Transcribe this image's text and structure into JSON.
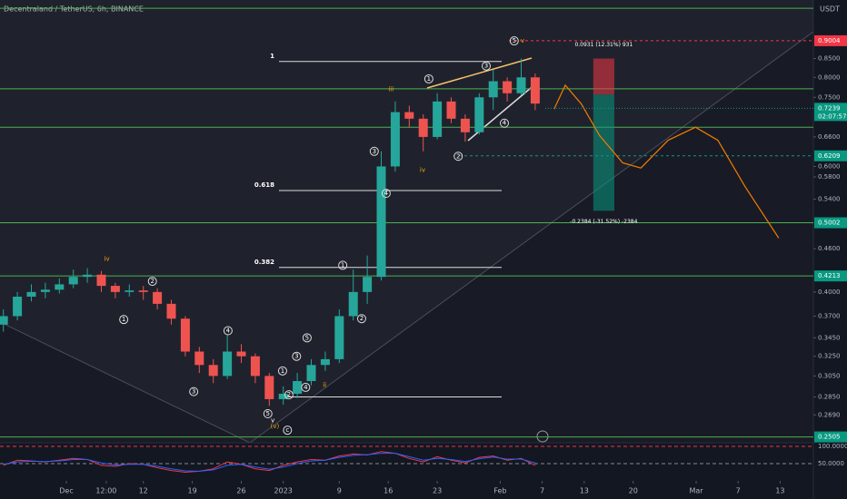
{
  "chart_data": {
    "type": "candlestick",
    "title": "Decentraland / TetherUS, 6h, BINANCE",
    "currency": "USDT",
    "log_scale": true,
    "xlim": [
      -9.48,
      106.75
    ],
    "ylim": [
      0.248,
      1.027
    ],
    "xticks": [
      {
        "value": 0,
        "label": "Dec"
      },
      {
        "value": 5.7,
        "label": "12:00"
      },
      {
        "value": 11,
        "label": "12"
      },
      {
        "value": 18,
        "label": "19"
      },
      {
        "value": 25,
        "label": "26"
      },
      {
        "value": 31,
        "label": "2023"
      },
      {
        "value": 39,
        "label": "9"
      },
      {
        "value": 46,
        "label": "16"
      },
      {
        "value": 53,
        "label": "23"
      },
      {
        "value": 62,
        "label": "Feb"
      },
      {
        "value": 68,
        "label": "7"
      },
      {
        "value": 74,
        "label": "13"
      },
      {
        "value": 81,
        "label": "20"
      },
      {
        "value": 90,
        "label": "Mar"
      },
      {
        "value": 96,
        "label": "7"
      },
      {
        "value": 102,
        "label": "13"
      }
    ],
    "yticks": [
      {
        "value": 0.85,
        "label": "0.8500"
      },
      {
        "value": 0.8,
        "label": "0.8000"
      },
      {
        "value": 0.75,
        "label": "0.7500"
      },
      {
        "value": 0.66,
        "label": "0.6600"
      },
      {
        "value": 0.6,
        "label": "0.6000"
      },
      {
        "value": 0.58,
        "label": "0.5800"
      },
      {
        "value": 0.54,
        "label": "0.5400"
      },
      {
        "value": 0.46,
        "label": "0.4600"
      },
      {
        "value": 0.4,
        "label": "0.4000"
      },
      {
        "value": 0.37,
        "label": "0.3700"
      },
      {
        "value": 0.345,
        "label": "0.3450"
      },
      {
        "value": 0.325,
        "label": "0.3250"
      },
      {
        "value": 0.305,
        "label": "0.3050"
      },
      {
        "value": 0.285,
        "label": "0.2850"
      },
      {
        "value": 0.269,
        "label": "0.2690"
      }
    ],
    "candles": {
      "up_color": "#26a69a",
      "down_color": "#ef5350",
      "x": [
        -9,
        -7,
        -5,
        -3,
        -1,
        1,
        3,
        5,
        7,
        9,
        11,
        13,
        15,
        17,
        19,
        21,
        23,
        25,
        27,
        29,
        31,
        33,
        35,
        37,
        39,
        41,
        43,
        45,
        47,
        49,
        51,
        53,
        55,
        57,
        59,
        61,
        63,
        65,
        67
      ],
      "open": [
        0.36,
        0.37,
        0.394,
        0.4,
        0.403,
        0.41,
        0.42,
        0.423,
        0.408,
        0.4,
        0.402,
        0.4,
        0.385,
        0.367,
        0.33,
        0.316,
        0.305,
        0.33,
        0.325,
        0.305,
        0.283,
        0.288,
        0.3,
        0.316,
        0.322,
        0.37,
        0.4,
        0.42,
        0.6,
        0.715,
        0.7,
        0.66,
        0.74,
        0.7,
        0.67,
        0.75,
        0.79,
        0.76,
        0.8
      ],
      "high": [
        0.378,
        0.4,
        0.41,
        0.412,
        0.418,
        0.43,
        0.432,
        0.428,
        0.412,
        0.41,
        0.408,
        0.405,
        0.39,
        0.37,
        0.335,
        0.322,
        0.348,
        0.338,
        0.328,
        0.308,
        0.295,
        0.308,
        0.322,
        0.33,
        0.378,
        0.43,
        0.45,
        0.63,
        0.74,
        0.73,
        0.71,
        0.76,
        0.75,
        0.71,
        0.76,
        0.82,
        0.8,
        0.85,
        0.81
      ],
      "low": [
        0.352,
        0.365,
        0.388,
        0.392,
        0.398,
        0.405,
        0.412,
        0.4,
        0.392,
        0.394,
        0.39,
        0.378,
        0.36,
        0.325,
        0.308,
        0.298,
        0.302,
        0.318,
        0.298,
        0.277,
        0.278,
        0.284,
        0.296,
        0.31,
        0.318,
        0.365,
        0.385,
        0.415,
        0.59,
        0.68,
        0.63,
        0.655,
        0.69,
        0.65,
        0.665,
        0.72,
        0.74,
        0.755,
        0.72
      ],
      "close": [
        0.37,
        0.394,
        0.4,
        0.403,
        0.41,
        0.42,
        0.423,
        0.408,
        0.4,
        0.402,
        0.4,
        0.385,
        0.367,
        0.33,
        0.316,
        0.305,
        0.33,
        0.325,
        0.305,
        0.283,
        0.288,
        0.3,
        0.316,
        0.322,
        0.37,
        0.4,
        0.42,
        0.6,
        0.715,
        0.7,
        0.66,
        0.74,
        0.7,
        0.67,
        0.75,
        0.79,
        0.76,
        0.8,
        0.735
      ]
    },
    "levels": [
      1.0,
      0.771,
      0.681,
      0.5002,
      0.4213,
      0.2505
    ],
    "level_color": "#4caf50",
    "badges": [
      {
        "value": 0.9004,
        "label": "0.9004",
        "color": "#f23645"
      },
      {
        "value": 0.6209,
        "label": "0.6209",
        "color": "#089981"
      },
      {
        "value": 0.5002,
        "label": "0.5002",
        "color": "#089981"
      },
      {
        "value": 0.4213,
        "label": "0.4213",
        "color": "#089981"
      },
      {
        "value": 0.2505,
        "label": "0.2505",
        "color": "#089981"
      }
    ],
    "current_price": {
      "value": 0.7239,
      "label": "0.7239",
      "countdown": "02:07:57",
      "color": "#089981"
    },
    "fib": [
      {
        "label": "1",
        "value": 0.842
      },
      {
        "label": "0.618",
        "value": 0.555
      },
      {
        "label": "0.382",
        "value": 0.433
      },
      {
        "value": 0.285
      }
    ],
    "position": {
      "x": [
        75.3,
        78.3
      ],
      "target": 0.85,
      "entry": 0.757,
      "stop": 0.52,
      "target_label": "0.0931 (12.31%) 931",
      "stop_label": "-0.2384 (-31.52%) -2384"
    },
    "projection": {
      "color": "#f57c00",
      "x": [
        69.7,
        71.3,
        73.6,
        76.2,
        79.5,
        82.1,
        86,
        89.9,
        93.1,
        97,
        101.8
      ],
      "y": [
        0.722,
        0.78,
        0.734,
        0.663,
        0.607,
        0.597,
        0.653,
        0.681,
        0.653,
        0.562,
        0.476
      ]
    },
    "annotations": [
      {
        "text": "iv",
        "x": 5.8,
        "y": 0.445,
        "style": "plain"
      },
      {
        "text": "1",
        "x": 8.2,
        "y": 0.366,
        "style": "circle"
      },
      {
        "text": "2",
        "x": 12.3,
        "y": 0.414,
        "style": "circle"
      },
      {
        "text": "3",
        "x": 18.2,
        "y": 0.29,
        "style": "circle"
      },
      {
        "text": "4",
        "x": 23.1,
        "y": 0.353,
        "style": "circle"
      },
      {
        "text": "5",
        "x": 28.8,
        "y": 0.27,
        "style": "circle"
      },
      {
        "text": "v",
        "x": 29.5,
        "y": 0.264,
        "style": "white"
      },
      {
        "text": "(v)",
        "x": 29.8,
        "y": 0.259,
        "style": "plain"
      },
      {
        "text": "c",
        "x": 31.6,
        "y": 0.256,
        "style": "circle"
      },
      {
        "text": "1",
        "x": 30.9,
        "y": 0.31,
        "style": "circle"
      },
      {
        "text": "2",
        "x": 31.8,
        "y": 0.287,
        "style": "circle"
      },
      {
        "text": "3",
        "x": 32.9,
        "y": 0.325,
        "style": "circle"
      },
      {
        "text": "4",
        "x": 34.2,
        "y": 0.294,
        "style": "circle"
      },
      {
        "text": "5",
        "x": 34.4,
        "y": 0.345,
        "style": "circle"
      },
      {
        "text": "ii",
        "x": 36.9,
        "y": 0.296,
        "style": "plain"
      },
      {
        "text": "1",
        "x": 39.5,
        "y": 0.436,
        "style": "circle"
      },
      {
        "text": "2",
        "x": 42.2,
        "y": 0.367,
        "style": "circle"
      },
      {
        "text": "3",
        "x": 44,
        "y": 0.63,
        "style": "circle"
      },
      {
        "text": "4",
        "x": 45.7,
        "y": 0.55,
        "style": "circle"
      },
      {
        "text": "iii",
        "x": 46.4,
        "y": 0.77,
        "style": "plain"
      },
      {
        "text": "iv",
        "x": 50.9,
        "y": 0.593,
        "style": "plain"
      },
      {
        "text": "1",
        "x": 51.8,
        "y": 0.796,
        "style": "circle"
      },
      {
        "text": "2",
        "x": 56,
        "y": 0.62,
        "style": "circle"
      },
      {
        "text": "3",
        "x": 60,
        "y": 0.83,
        "style": "circle"
      },
      {
        "text": "4",
        "x": 62.6,
        "y": 0.69,
        "style": "circle"
      },
      {
        "text": "5",
        "x": 64,
        "y": 0.9,
        "style": "circle"
      },
      {
        "text": "v",
        "x": 65.2,
        "y": 0.9,
        "style": "plain"
      }
    ],
    "rsi": {
      "ylim": [
        0,
        100
      ],
      "yticks": [
        {
          "value": 100,
          "label": "100.0000"
        },
        {
          "value": 50,
          "label": "50.0000"
        }
      ],
      "series": [
        {
          "color": "#f23645",
          "values": [
            45,
            60,
            58,
            55,
            60,
            65,
            62,
            45,
            42,
            50,
            48,
            38,
            30,
            25,
            28,
            35,
            55,
            48,
            35,
            30,
            45,
            55,
            62,
            60,
            72,
            78,
            75,
            85,
            80,
            65,
            55,
            70,
            60,
            52,
            68,
            72,
            60,
            65,
            45
          ]
        },
        {
          "color": "#2962ff",
          "values": [
            48,
            55,
            57,
            56,
            58,
            62,
            62,
            52,
            46,
            48,
            48,
            42,
            35,
            29,
            28,
            32,
            45,
            48,
            40,
            34,
            40,
            50,
            58,
            60,
            68,
            74,
            76,
            80,
            80,
            70,
            60,
            65,
            62,
            56,
            64,
            69,
            63,
            63,
            52
          ]
        }
      ]
    }
  }
}
